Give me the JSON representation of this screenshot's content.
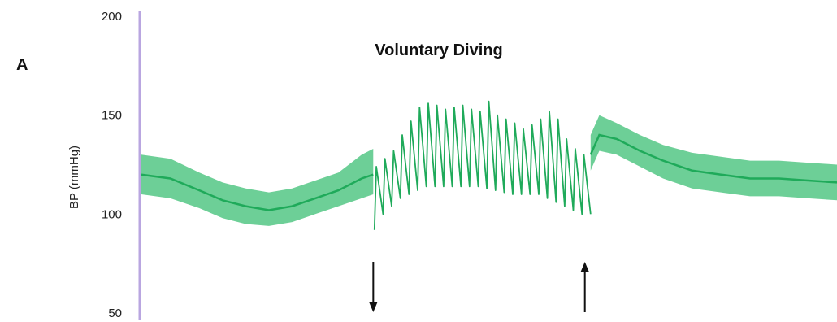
{
  "chart_data": {
    "type": "line",
    "panel_label": "A",
    "title": "Voluntary Diving",
    "xlabel": "",
    "ylabel": "BP (mmHg)",
    "ylim": [
      50,
      200
    ],
    "yticks": [
      200,
      150,
      100,
      50
    ],
    "grid": false,
    "colors": {
      "trace": "#1faa5a",
      "band": "#3cbf74",
      "axis": "#b9a6e0",
      "arrow": "#111111"
    },
    "series": [
      {
        "values": [
          {
            "t": 0,
            "mean": 120,
            "lo": 110,
            "hi": 130
          },
          {
            "t": 5,
            "mean": 118,
            "lo": 108,
            "hi": 128
          },
          {
            "t": 10,
            "mean": 112,
            "lo": 103,
            "hi": 121
          },
          {
            "t": 14,
            "mean": 107,
            "lo": 98,
            "hi": 116
          },
          {
            "t": 18,
            "mean": 104,
            "lo": 95,
            "hi": 113
          },
          {
            "t": 22,
            "mean": 102,
            "lo": 94,
            "hi": 111
          },
          {
            "t": 26,
            "mean": 104,
            "lo": 96,
            "hi": 113
          },
          {
            "t": 30,
            "mean": 108,
            "lo": 100,
            "hi": 117
          },
          {
            "t": 34,
            "mean": 112,
            "lo": 104,
            "hi": 121
          },
          {
            "t": 38,
            "mean": 118,
            "lo": 108,
            "hi": 130
          },
          {
            "t": 40,
            "mean": 120,
            "lo": 110,
            "hi": 133
          }
        ]
      },
      {
        "pulse": {
          "t_start": 40.2,
          "t_end": 77.5,
          "peaks": [
            124,
            128,
            132,
            140,
            147,
            154,
            156,
            155,
            153,
            154,
            155,
            153,
            152,
            157,
            150,
            148,
            146,
            143,
            145,
            148,
            152,
            148,
            138,
            133,
            130
          ],
          "troughs": [
            92,
            100,
            104,
            108,
            110,
            112,
            114,
            114,
            114,
            114,
            114,
            114,
            114,
            113,
            112,
            111,
            110,
            110,
            110,
            110,
            108,
            106,
            104,
            102,
            100
          ]
        }
      },
      {
        "values": [
          {
            "t": 77.5,
            "mean": 130,
            "lo": 122,
            "hi": 140
          },
          {
            "t": 79,
            "mean": 140,
            "lo": 132,
            "hi": 150
          },
          {
            "t": 82,
            "mean": 138,
            "lo": 130,
            "hi": 146
          },
          {
            "t": 86,
            "mean": 132,
            "lo": 124,
            "hi": 140
          },
          {
            "t": 90,
            "mean": 127,
            "lo": 118,
            "hi": 135
          },
          {
            "t": 95,
            "mean": 122,
            "lo": 113,
            "hi": 131
          },
          {
            "t": 100,
            "mean": 120,
            "lo": 111,
            "hi": 129
          },
          {
            "t": 105,
            "mean": 118,
            "lo": 109,
            "hi": 127
          },
          {
            "t": 110,
            "mean": 118,
            "lo": 109,
            "hi": 127
          },
          {
            "t": 115,
            "mean": 117,
            "lo": 108,
            "hi": 126
          },
          {
            "t": 120,
            "mean": 116,
            "lo": 107,
            "hi": 125
          }
        ]
      }
    ],
    "events": [
      {
        "t": 40.0,
        "direction": "down"
      },
      {
        "t": 76.5,
        "direction": "up"
      }
    ]
  }
}
